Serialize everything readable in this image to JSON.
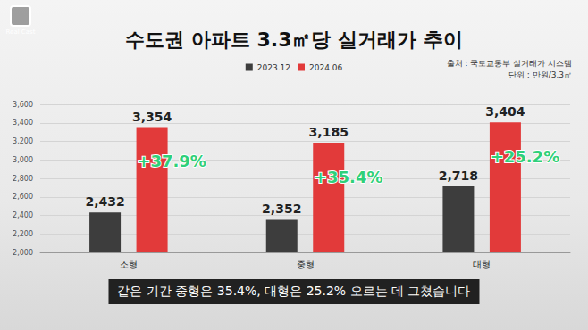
{
  "chart_data": {
    "type": "bar",
    "title": "수도권 아파트 3.3㎡당 실거래가 추이",
    "source": "출처 : 국토교통부 실거래가 시스템",
    "unit": "단위 : 만원/3.3㎡",
    "categories": [
      "소형",
      "중형",
      "대형"
    ],
    "series": [
      {
        "name": "2023.12",
        "color": "#3d3d3d",
        "values": [
          2432,
          2352,
          2718
        ],
        "value_labels": [
          "2,432",
          "2,352",
          "2,718"
        ]
      },
      {
        "name": "2024.06",
        "color": "#e23a3a",
        "values": [
          3354,
          3185,
          3404
        ],
        "value_labels": [
          "3,354",
          "3,185",
          "3,404"
        ]
      }
    ],
    "annotations": [
      {
        "category": "소형",
        "text": "+37.9%"
      },
      {
        "category": "중형",
        "text": "+35.4%"
      },
      {
        "category": "대형",
        "text": "+25.2%"
      }
    ],
    "ylim": [
      2000,
      3600
    ],
    "yticks": [
      {
        "value": 2000,
        "label": "2,000"
      },
      {
        "value": 2200,
        "label": "2,200"
      },
      {
        "value": 2400,
        "label": "2,400"
      },
      {
        "value": 2600,
        "label": "2,600"
      },
      {
        "value": 2800,
        "label": "2,800"
      },
      {
        "value": 3000,
        "label": "3,000"
      },
      {
        "value": 3200,
        "label": "3,200"
      },
      {
        "value": 3400,
        "label": "3,400"
      },
      {
        "value": 3600,
        "label": "3,600"
      }
    ],
    "grid": true,
    "legend": "top",
    "data_labels": true
  },
  "page": {
    "logo": "Real Cast",
    "caption": "같은 기간 중형은 35.4%, 대형은 25.2% 오르는 데 그쳤습니다"
  }
}
